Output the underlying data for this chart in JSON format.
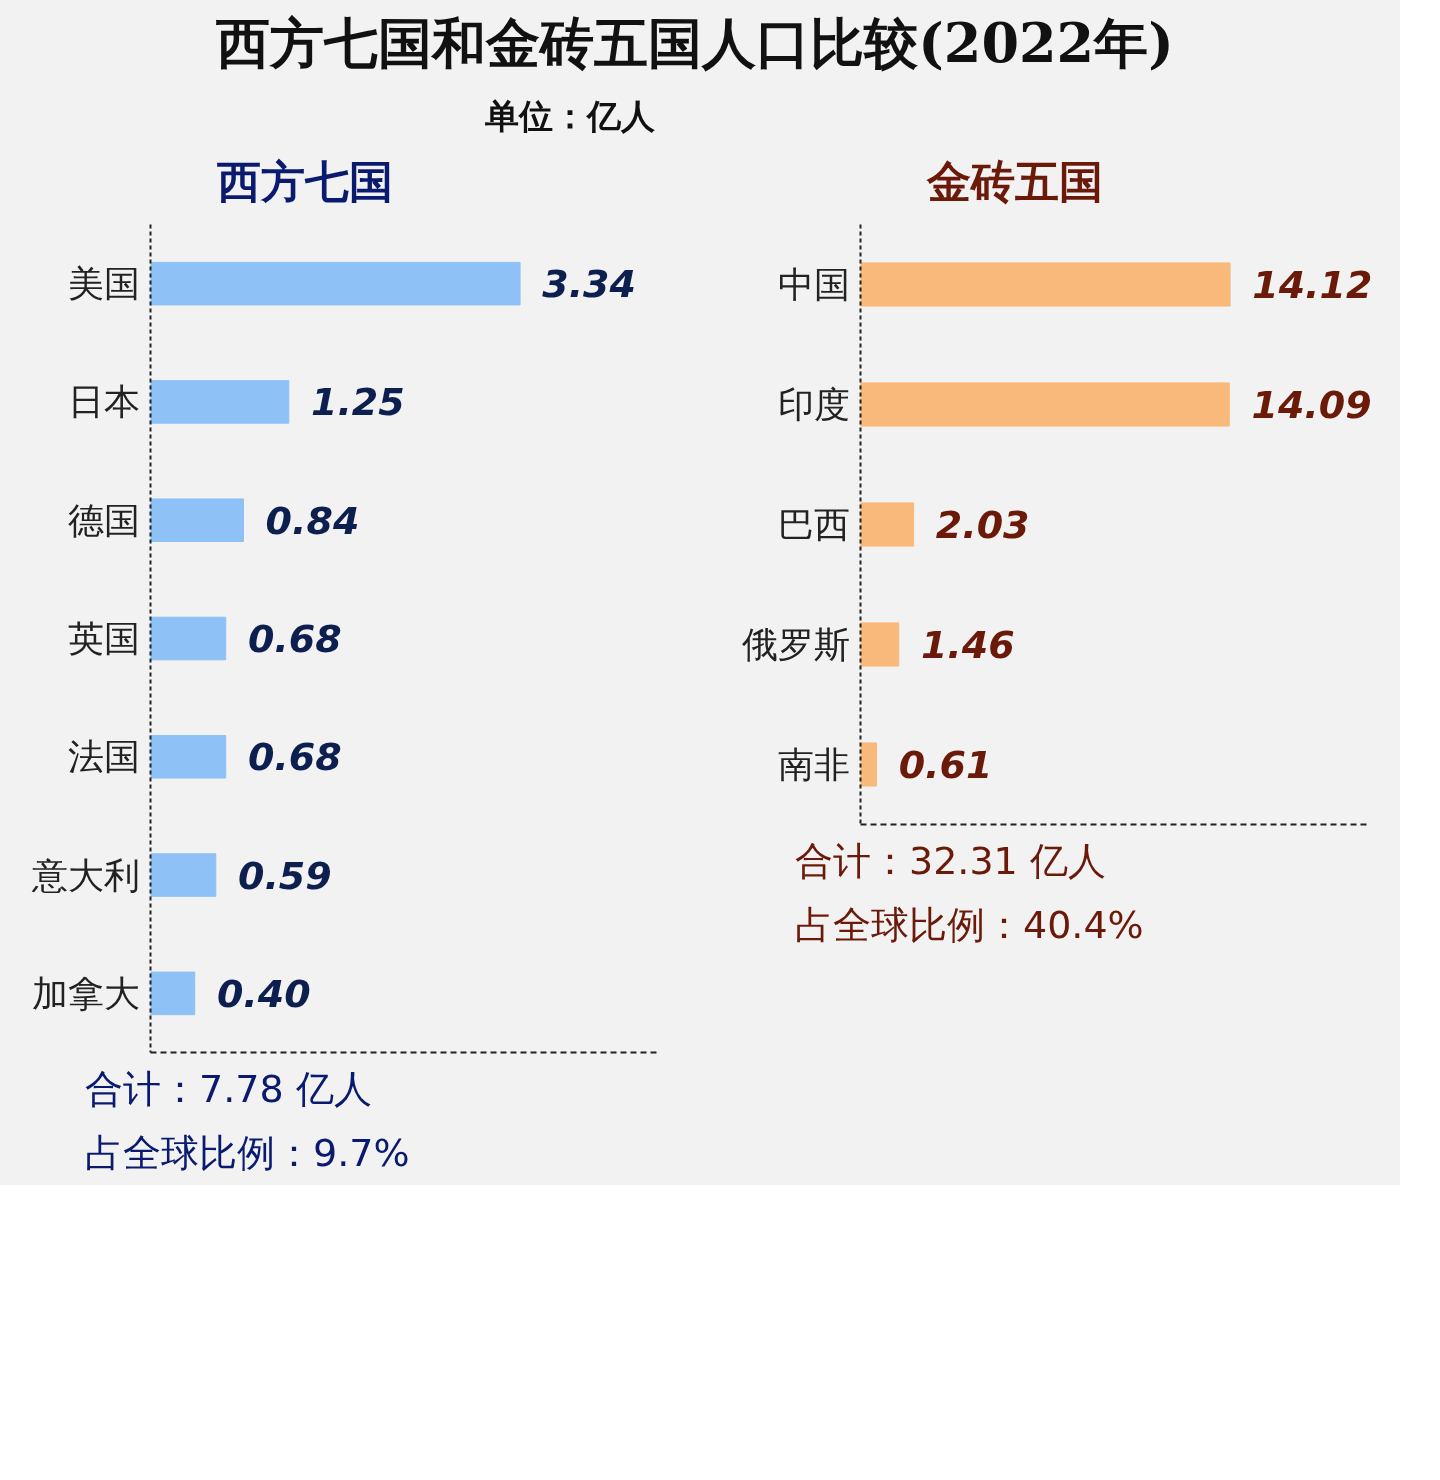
{
  "chart_data": [
    {
      "type": "bar",
      "orientation": "horizontal",
      "title": "西方七国和金砖五国人口比较(2022年)",
      "subtitle": "单位：亿人",
      "categories": [
        "美国",
        "日本",
        "德国",
        "英国",
        "法国",
        "意大利",
        "加拿大"
      ],
      "values": [
        3.34,
        1.25,
        0.84,
        0.68,
        0.68,
        0.59,
        0.4
      ],
      "value_labels": [
        "3.34",
        "1.25",
        "0.84",
        "0.68",
        "0.68",
        "0.59",
        "0.40"
      ],
      "data_labels": true,
      "color": "#8ec1f5",
      "tick_labels": "y",
      "grid": false,
      "annotations": [
        "西方七国",
        "合计：7.78 亿人",
        "占全球比例：9.7%"
      ]
    },
    {
      "type": "bar",
      "orientation": "horizontal",
      "categories": [
        "中国",
        "印度",
        "巴西",
        "俄罗斯",
        "南非"
      ],
      "values": [
        14.12,
        14.09,
        2.03,
        1.46,
        0.61
      ],
      "value_labels": [
        "14.12",
        "14.09",
        "2.03",
        "1.46",
        "0.61"
      ],
      "data_labels": true,
      "color": "#f9b97a",
      "tick_labels": "y",
      "grid": false,
      "annotations": [
        "金砖五国",
        "合计：32.31 亿人",
        "占全球比例：40.4%"
      ]
    }
  ]
}
